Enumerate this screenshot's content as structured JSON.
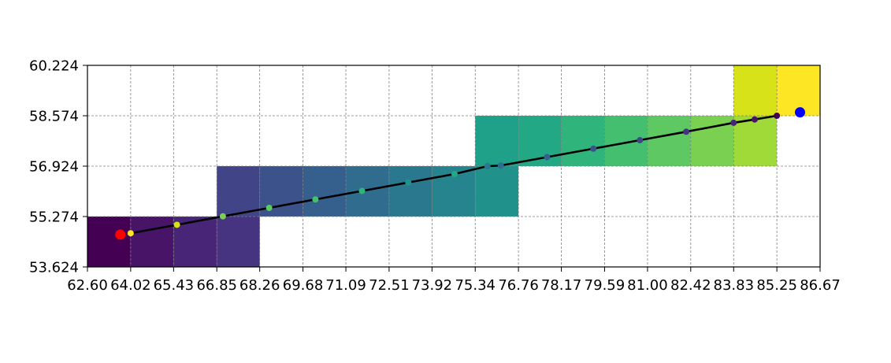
{
  "chart_data": {
    "type": "line",
    "title": "",
    "xlabel": "",
    "ylabel": "",
    "xlim": [
      62.6,
      86.67
    ],
    "ylim": [
      53.624,
      60.224
    ],
    "grid": true,
    "x_ticks": [
      "62.60",
      "64.02",
      "65.43",
      "66.85",
      "68.26",
      "69.68",
      "71.09",
      "72.51",
      "73.92",
      "75.34",
      "76.76",
      "78.17",
      "79.59",
      "81.00",
      "82.42",
      "83.83",
      "85.25",
      "86.67"
    ],
    "y_ticks": [
      "53.624",
      "55.274",
      "56.924",
      "58.574",
      "60.224"
    ],
    "cells": [
      {
        "x0": 62.6,
        "x1": 64.02,
        "y0": 53.624,
        "y1": 55.274,
        "color": "#440154"
      },
      {
        "x0": 64.02,
        "x1": 65.43,
        "y0": 53.624,
        "y1": 55.274,
        "color": "#481467"
      },
      {
        "x0": 65.43,
        "x1": 66.85,
        "y0": 53.624,
        "y1": 55.274,
        "color": "#482576"
      },
      {
        "x0": 66.85,
        "x1": 68.26,
        "y0": 53.624,
        "y1": 55.274,
        "color": "#463480"
      },
      {
        "x0": 66.85,
        "x1": 68.26,
        "y0": 55.274,
        "y1": 56.924,
        "color": "#414487"
      },
      {
        "x0": 68.26,
        "x1": 69.68,
        "y0": 55.274,
        "y1": 56.924,
        "color": "#3b528b"
      },
      {
        "x0": 69.68,
        "x1": 71.09,
        "y0": 55.274,
        "y1": 56.924,
        "color": "#355f8d"
      },
      {
        "x0": 71.09,
        "x1": 72.51,
        "y0": 55.274,
        "y1": 56.924,
        "color": "#2f6c8e"
      },
      {
        "x0": 72.51,
        "x1": 73.92,
        "y0": 55.274,
        "y1": 56.924,
        "color": "#2a788e"
      },
      {
        "x0": 73.92,
        "x1": 75.34,
        "y0": 55.274,
        "y1": 56.924,
        "color": "#25848e"
      },
      {
        "x0": 75.34,
        "x1": 76.76,
        "y0": 55.274,
        "y1": 56.924,
        "color": "#21918c"
      },
      {
        "x0": 75.34,
        "x1": 76.76,
        "y0": 56.924,
        "y1": 58.574,
        "color": "#1fa088"
      },
      {
        "x0": 76.76,
        "x1": 78.17,
        "y0": 56.924,
        "y1": 58.574,
        "color": "#22a884"
      },
      {
        "x0": 78.17,
        "x1": 79.59,
        "y0": 56.924,
        "y1": 58.574,
        "color": "#2fb47c"
      },
      {
        "x0": 79.59,
        "x1": 81.0,
        "y0": 56.924,
        "y1": 58.574,
        "color": "#44bf70"
      },
      {
        "x0": 81.0,
        "x1": 82.42,
        "y0": 56.924,
        "y1": 58.574,
        "color": "#5ec962"
      },
      {
        "x0": 82.42,
        "x1": 83.83,
        "y0": 56.924,
        "y1": 58.574,
        "color": "#7ad151"
      },
      {
        "x0": 83.83,
        "x1": 85.25,
        "y0": 56.924,
        "y1": 58.574,
        "color": "#a0da39"
      },
      {
        "x0": 83.83,
        "x1": 85.25,
        "y0": 58.574,
        "y1": 60.224,
        "color": "#d8e219"
      },
      {
        "x0": 85.25,
        "x1": 86.67,
        "y0": 58.574,
        "y1": 60.224,
        "color": "#fde725"
      }
    ],
    "series": [
      {
        "x": [
          64.02,
          65.54,
          67.05,
          68.57,
          70.09,
          71.62,
          73.14,
          74.66,
          75.74,
          76.18,
          77.7,
          79.22,
          80.75,
          82.27,
          83.83,
          84.52,
          85.25
        ],
        "y": [
          54.727,
          55.004,
          55.281,
          55.558,
          55.835,
          56.112,
          56.389,
          56.666,
          56.924,
          56.943,
          57.22,
          57.497,
          57.774,
          58.051,
          58.344,
          58.453,
          58.574
        ],
        "line_color": "#000000",
        "marker_colors": [
          "#fde725",
          "#d8e219",
          "#7ad151",
          "#5ec962",
          "#44bf70",
          "#2fb47c",
          "#21918c",
          "#22a884",
          "#2a788e",
          "#2f6c8e",
          "#355f8d",
          "#3b528b",
          "#414487",
          "#463480",
          "#482576",
          "#481467",
          "#440154"
        ]
      }
    ],
    "start_point": {
      "x": 63.68,
      "y": 54.683,
      "color": "#ff0000"
    },
    "end_point": {
      "x": 86.01,
      "y": 58.686,
      "color": "#0000ff"
    }
  }
}
